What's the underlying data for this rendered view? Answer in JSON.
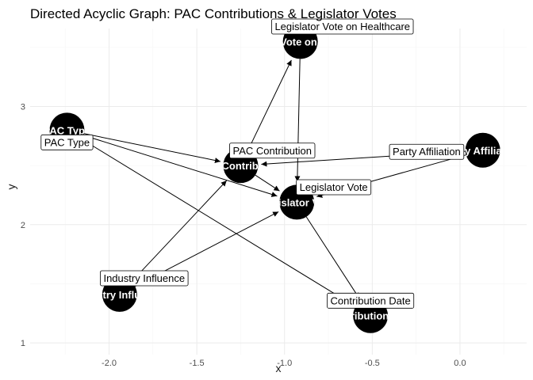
{
  "title": "Directed Acyclic Graph: PAC Contributions & Legislator Votes",
  "x_axis": {
    "label": "x",
    "ticks": [
      -2.0,
      -1.5,
      -1.0,
      -0.5,
      0.0
    ],
    "tick_labels": [
      "-2.0",
      "-1.5",
      "-1.0",
      "-0.5",
      "0.0"
    ],
    "range": [
      -2.45,
      0.38
    ]
  },
  "y_axis": {
    "label": "y",
    "ticks": [
      1,
      2,
      3
    ],
    "tick_labels": [
      "1",
      "2",
      "3"
    ],
    "range": [
      0.9,
      3.66
    ]
  },
  "colors": {
    "node": "#000000",
    "edge": "#000000",
    "grid_major": "#ebebeb",
    "grid_minor": "#f5f5f5"
  },
  "chart_data": {
    "type": "dag",
    "nodes": [
      {
        "id": "pac_type",
        "name": "PAC Type",
        "x": -2.24,
        "y": 2.8,
        "label_x": -2.24,
        "label_y": 2.7
      },
      {
        "id": "industry",
        "name": "Industry Influence",
        "x": -1.94,
        "y": 1.41,
        "label_x": -1.8,
        "label_y": 1.55
      },
      {
        "id": "pac_contribution",
        "name": "PAC Contribution",
        "x": -1.25,
        "y": 2.5,
        "label_x": -1.07,
        "label_y": 2.63
      },
      {
        "id": "vote_healthcare",
        "name": "Legislator Vote on Healthcare",
        "x": -0.91,
        "y": 3.55,
        "label_x": -0.67,
        "label_y": 3.68
      },
      {
        "id": "legislator_vote",
        "name": "Legislator Vote",
        "x": -0.93,
        "y": 2.19,
        "label_x": -0.72,
        "label_y": 2.32
      },
      {
        "id": "party",
        "name": "Party Affiliation",
        "x": 0.13,
        "y": 2.63,
        "label_x": -0.19,
        "label_y": 2.62
      },
      {
        "id": "contribution_date",
        "name": "Contribution Date",
        "x": -0.51,
        "y": 1.23,
        "label_x": -0.51,
        "label_y": 1.36
      }
    ],
    "edges": [
      {
        "from": "pac_type",
        "to": "pac_contribution"
      },
      {
        "from": "pac_type",
        "to": "legislator_vote"
      },
      {
        "from": "pac_type",
        "to": "contribution_date"
      },
      {
        "from": "industry",
        "to": "pac_contribution"
      },
      {
        "from": "industry",
        "to": "legislator_vote"
      },
      {
        "from": "pac_contribution",
        "to": "vote_healthcare"
      },
      {
        "from": "pac_contribution",
        "to": "legislator_vote"
      },
      {
        "from": "vote_healthcare",
        "to": "legislator_vote"
      },
      {
        "from": "party",
        "to": "pac_contribution"
      },
      {
        "from": "party",
        "to": "legislator_vote"
      },
      {
        "from": "legislator_vote",
        "to": "contribution_date"
      }
    ]
  }
}
